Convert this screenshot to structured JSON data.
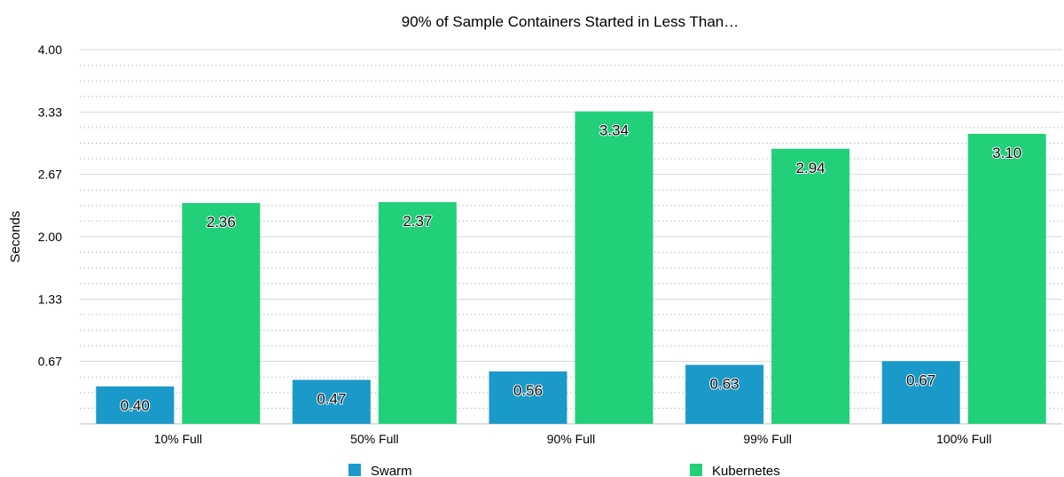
{
  "chart_data": {
    "type": "bar",
    "title": "90% of Sample Containers Started in Less Than…",
    "xlabel": "",
    "ylabel": "Seconds",
    "ylim": [
      0,
      4.0
    ],
    "yticks": [
      "0.67",
      "1.33",
      "2.00",
      "2.67",
      "3.33",
      "4.00"
    ],
    "categories": [
      "10% Full",
      "50% Full",
      "90% Full",
      "99% Full",
      "100% Full"
    ],
    "series": [
      {
        "name": "Swarm",
        "color": "#1b9ac9",
        "values": [
          0.4,
          0.47,
          0.56,
          0.63,
          0.67
        ],
        "labels": [
          "0.40",
          "0.47",
          "0.56",
          "0.63",
          "0.67"
        ]
      },
      {
        "name": "Kubernetes",
        "color": "#22d07a",
        "values": [
          2.36,
          2.37,
          3.34,
          2.94,
          3.1
        ],
        "labels": [
          "2.36",
          "2.37",
          "3.34",
          "2.94",
          "3.10"
        ]
      }
    ],
    "grid": true,
    "legend": "bottom"
  }
}
